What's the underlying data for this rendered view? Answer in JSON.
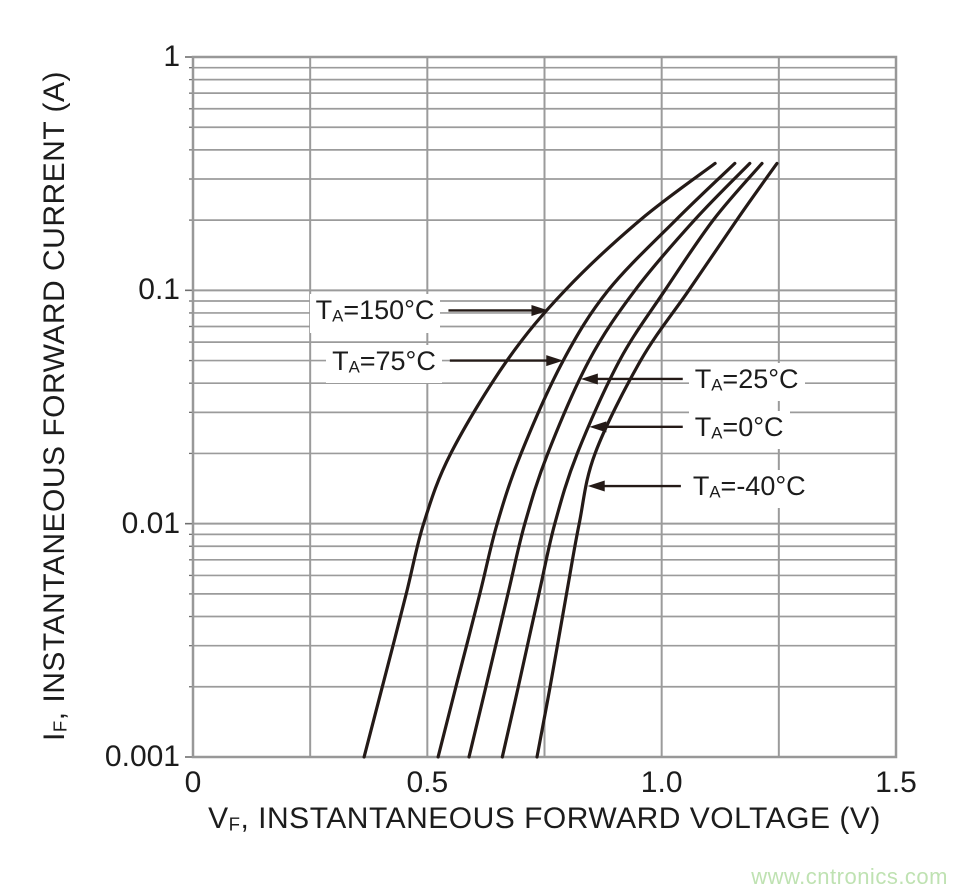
{
  "chart_data": {
    "type": "line",
    "title": "",
    "x_axis": {
      "label_base": "V",
      "label_sub": "F",
      "label_rest": ", INSTANTANEOUS FORWARD VOLTAGE (V)",
      "min": 0,
      "max": 1.5,
      "grid_step": 0.25,
      "ticks": [
        {
          "v": 0,
          "label": "0"
        },
        {
          "v": 0.5,
          "label": "0.5"
        },
        {
          "v": 1.0,
          "label": "1.0"
        },
        {
          "v": 1.5,
          "label": "1.5"
        }
      ]
    },
    "y_axis": {
      "label_base": "I",
      "label_sub": "F",
      "label_rest": ", INSTANTANEOUS FORWARD CURRENT (A)",
      "scale": "log",
      "min": 0.001,
      "max": 1,
      "ticks": [
        {
          "v": 1,
          "label": "1"
        },
        {
          "v": 0.1,
          "label": "0.1"
        },
        {
          "v": 0.01,
          "label": "0.01"
        },
        {
          "v": 0.001,
          "label": "0.001"
        }
      ]
    },
    "series": [
      {
        "name": "TA=150°C",
        "label_base": "T",
        "label_sub": "A",
        "label_rest": "=150°C",
        "temperature_c": 150,
        "points_v_a": [
          [
            0.365,
            0.001
          ],
          [
            0.404,
            0.002
          ],
          [
            0.455,
            0.005
          ],
          [
            0.492,
            0.01
          ],
          [
            0.55,
            0.02
          ],
          [
            0.67,
            0.05
          ],
          [
            0.794,
            0.1
          ],
          [
            0.954,
            0.2
          ],
          [
            1.114,
            0.35
          ]
        ]
      },
      {
        "name": "TA=75°C",
        "label_base": "T",
        "label_sub": "A",
        "label_rest": "=75°C",
        "temperature_c": 75,
        "points_v_a": [
          [
            0.523,
            0.001
          ],
          [
            0.561,
            0.002
          ],
          [
            0.612,
            0.005
          ],
          [
            0.649,
            0.01
          ],
          [
            0.7,
            0.02
          ],
          [
            0.79,
            0.05
          ],
          [
            0.886,
            0.1
          ],
          [
            1.03,
            0.2
          ],
          [
            1.156,
            0.35
          ]
        ]
      },
      {
        "name": "TA=25°C",
        "label_base": "T",
        "label_sub": "A",
        "label_rest": "=25°C",
        "temperature_c": 25,
        "points_v_a": [
          [
            0.589,
            0.001
          ],
          [
            0.625,
            0.002
          ],
          [
            0.672,
            0.005
          ],
          [
            0.708,
            0.01
          ],
          [
            0.757,
            0.02
          ],
          [
            0.845,
            0.05
          ],
          [
            0.943,
            0.1
          ],
          [
            1.07,
            0.2
          ],
          [
            1.188,
            0.35
          ]
        ]
      },
      {
        "name": "TA=0°C",
        "label_base": "T",
        "label_sub": "A",
        "label_rest": "=0°C",
        "temperature_c": 0,
        "points_v_a": [
          [
            0.66,
            0.001
          ],
          [
            0.694,
            0.002
          ],
          [
            0.738,
            0.005
          ],
          [
            0.772,
            0.01
          ],
          [
            0.82,
            0.02
          ],
          [
            0.91,
            0.05
          ],
          [
            1.007,
            0.1
          ],
          [
            1.11,
            0.2
          ],
          [
            1.214,
            0.35
          ]
        ]
      },
      {
        "name": "TA=-40°C",
        "label_base": "T",
        "label_sub": "A",
        "label_rest": "=-40°C",
        "temperature_c": -40,
        "points_v_a": [
          [
            0.734,
            0.001
          ],
          [
            0.762,
            0.002
          ],
          [
            0.797,
            0.005
          ],
          [
            0.824,
            0.01
          ],
          [
            0.858,
            0.02
          ],
          [
            0.955,
            0.05
          ],
          [
            1.058,
            0.1
          ],
          [
            1.16,
            0.2
          ],
          [
            1.246,
            0.35
          ]
        ]
      }
    ],
    "annotations": [
      {
        "series_index": 0,
        "at_current": 0.082,
        "side": "left",
        "tail_v": 0.545
      },
      {
        "series_index": 1,
        "at_current": 0.05,
        "side": "left",
        "tail_v": 0.548
      },
      {
        "series_index": 2,
        "at_current": 0.0417,
        "side": "right",
        "tail_v": 1.045
      },
      {
        "series_index": 3,
        "at_current": 0.026,
        "side": "right",
        "tail_v": 1.045
      },
      {
        "series_index": 4,
        "at_current": 0.0145,
        "side": "right",
        "tail_v": 1.041
      }
    ]
  },
  "watermark": {
    "text": "www.cntronics.com"
  },
  "colors": {
    "curve": "#241a17",
    "grid": "#9b9b9b",
    "border": "#989898",
    "tick": "#6f6f6f",
    "text": "#1c1c1c",
    "watermark": "#bfe2b2"
  }
}
